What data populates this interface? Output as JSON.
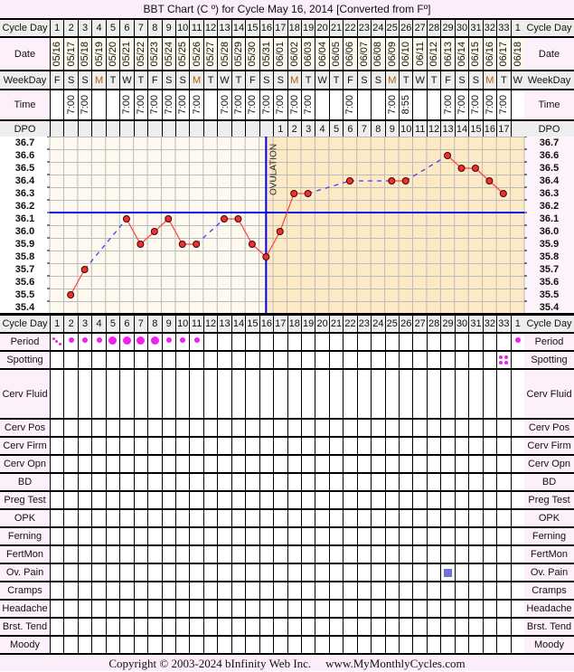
{
  "title": "BBT Chart (C º) for Cycle May 16, 2014  [Converted from Fº]",
  "row_labels": {
    "cycle_day": "Cycle Day",
    "date": "Date",
    "weekday": "WeekDay",
    "time": "Time",
    "dpo": "DPO",
    "period": "Period",
    "spotting": "Spotting",
    "cerv_fluid": "Cerv Fluid",
    "cerv_pos": "Cerv Pos",
    "cerv_firm": "Cerv Firm",
    "cerv_opn": "Cerv Opn",
    "bd": "BD",
    "preg_test": "Preg Test",
    "opk": "OPK",
    "ferning": "Ferning",
    "fertmon": "FertMon",
    "ov_pain": "Ov. Pain",
    "cramps": "Cramps",
    "headache": "Headache",
    "brst_tend": "Brst. Tend",
    "moody": "Moody"
  },
  "columns": {
    "cycle_day": [
      "1",
      "2",
      "3",
      "4",
      "5",
      "6",
      "7",
      "8",
      "9",
      "10",
      "11",
      "12",
      "13",
      "14",
      "15",
      "16",
      "17",
      "18",
      "19",
      "20",
      "21",
      "22",
      "23",
      "24",
      "25",
      "26",
      "27",
      "28",
      "29",
      "30",
      "31",
      "32",
      "33",
      "1"
    ],
    "date": [
      "05/16",
      "05/17",
      "05/18",
      "05/19",
      "05/20",
      "05/21",
      "05/22",
      "05/23",
      "05/24",
      "05/25",
      "05/26",
      "05/27",
      "05/28",
      "05/29",
      "05/30",
      "05/31",
      "06/01",
      "06/02",
      "06/03",
      "06/04",
      "06/05",
      "06/06",
      "06/07",
      "06/08",
      "06/09",
      "06/10",
      "06/11",
      "06/12",
      "06/13",
      "06/14",
      "06/15",
      "06/16",
      "06/17",
      "06/18"
    ],
    "weekday": [
      "F",
      "S",
      "S",
      "M",
      "T",
      "W",
      "T",
      "F",
      "S",
      "S",
      "M",
      "T",
      "W",
      "T",
      "F",
      "S",
      "S",
      "M",
      "T",
      "W",
      "T",
      "F",
      "S",
      "S",
      "M",
      "T",
      "W",
      "T",
      "F",
      "S",
      "S",
      "M",
      "T",
      "W"
    ],
    "time": [
      "",
      "7:00",
      "7:00",
      "",
      "",
      "7:00",
      "7:00",
      "7:00",
      "7:00",
      "7:00",
      "7:00",
      "",
      "7:00",
      "7:00",
      "7:00",
      "7:00",
      "7:00",
      "7:00",
      "7:00",
      "",
      "",
      "7:00",
      "",
      "",
      "7:00",
      "8:55",
      "",
      "",
      "7:00",
      "7:00",
      "7:00",
      "7:00",
      "7:00",
      ""
    ],
    "dpo": [
      "",
      "",
      "",
      "",
      "",
      "",
      "",
      "",
      "",
      "",
      "",
      "",
      "",
      "",
      "",
      "",
      "1",
      "2",
      "3",
      "4",
      "5",
      "6",
      "7",
      "8",
      "9",
      "10",
      "11",
      "12",
      "13",
      "14",
      "15",
      "16",
      "17",
      ""
    ],
    "period": [
      "spotting",
      "medium",
      "medium",
      "medium",
      "heavy",
      "heavy",
      "heavy",
      "heavy",
      "medium",
      "medium",
      "medium",
      "",
      "",
      "",
      "",
      "",
      "",
      "",
      "",
      "",
      "",
      "",
      "",
      "",
      "",
      "",
      "",
      "",
      "",
      "",
      "",
      "",
      "",
      "medium"
    ],
    "spotting": [
      "",
      "",
      "",
      "",
      "",
      "",
      "",
      "",
      "",
      "",
      "",
      "",
      "",
      "",
      "",
      "",
      "",
      "",
      "",
      "",
      "",
      "",
      "",
      "",
      "",
      "",
      "",
      "",
      "",
      "",
      "",
      "",
      "yes",
      ""
    ],
    "ov_pain": [
      "",
      "",
      "",
      "",
      "",
      "",
      "",
      "",
      "",
      "",
      "",
      "",
      "",
      "",
      "",
      "",
      "",
      "",
      "",
      "",
      "",
      "",
      "",
      "",
      "",
      "",
      "",
      "",
      "yes",
      "",
      "",
      "",
      "",
      ""
    ]
  },
  "chart_data": {
    "type": "line",
    "title": "BBT Chart (C º) for Cycle May 16, 2014  [Converted from Fº]",
    "x": [
      1,
      2,
      3,
      4,
      5,
      6,
      7,
      8,
      9,
      10,
      11,
      12,
      13,
      14,
      15,
      16,
      17,
      18,
      19,
      20,
      21,
      22,
      23,
      24,
      25,
      26,
      27,
      28,
      29,
      30,
      31,
      32,
      33,
      34
    ],
    "temps": [
      null,
      35.5,
      35.7,
      null,
      null,
      36.1,
      35.9,
      36.0,
      36.1,
      35.9,
      35.9,
      null,
      36.1,
      36.1,
      35.9,
      35.8,
      36.0,
      36.3,
      36.3,
      null,
      null,
      36.4,
      null,
      null,
      36.4,
      36.4,
      null,
      null,
      36.6,
      36.5,
      36.5,
      36.4,
      36.3,
      null
    ],
    "yticks": [
      "36.7",
      "36.6",
      "36.5",
      "36.4",
      "36.3",
      "36.2",
      "36.1",
      "36.0",
      "35.9",
      "35.8",
      "35.7",
      "35.6",
      "35.5",
      "35.4"
    ],
    "ylim": [
      35.35,
      36.75
    ],
    "coverline": 36.15,
    "ovulation_day": 16,
    "ovulation_label": "OVULATION",
    "grid": true,
    "colors": {
      "line": "#ff4040",
      "point": "#ee3030",
      "gap_line": "#4040ff",
      "coverline": "#0000ee",
      "follicular_bg": "#fef9ee",
      "luteal_bg": "#fde9c4",
      "period": "#ee22ee",
      "ov_pain": "#6f73d8"
    }
  },
  "footer": {
    "copyright": "Copyright © 2003-2024 bInfinity Web Inc.",
    "site": "www.MyMonthlyCycles.com"
  }
}
